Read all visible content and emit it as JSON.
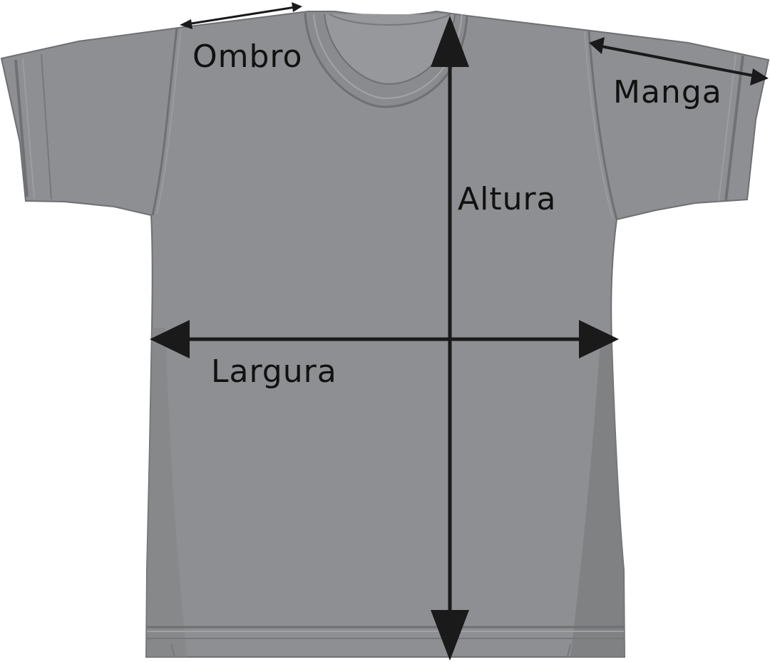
{
  "diagram": {
    "subject": "t-shirt",
    "labels": {
      "shoulder": "Ombro",
      "sleeve": "Manga",
      "height": "Altura",
      "width": "Largura"
    }
  },
  "colors": {
    "shirt_body": "#8e8f92",
    "shirt_shadow": "#7c7d80",
    "shirt_highlight": "#9a9b9e",
    "seam": "#6f7073",
    "arrow": "#1a1a1a",
    "text": "#111111"
  }
}
